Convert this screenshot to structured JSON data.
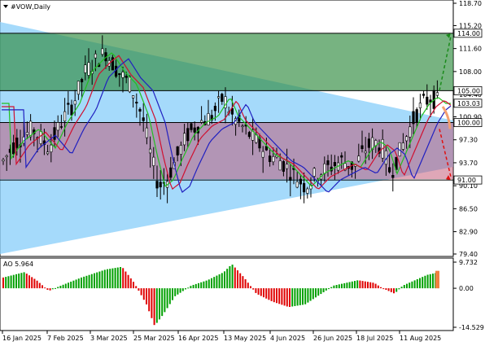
{
  "window": {
    "title": "#VOW,Daily",
    "menu_icon": "triangle-down-icon"
  },
  "price_axis": {
    "ticks": [
      "118.70",
      "115.20",
      "111.60",
      "108.00",
      "104.40",
      "100.90",
      "97.30",
      "93.70",
      "90.10",
      "86.50",
      "82.90",
      "79.40"
    ]
  },
  "levels": [
    {
      "value": 114.0,
      "label": "114.00",
      "color": "#000000"
    },
    {
      "value": 105.0,
      "label": "105.00",
      "color": "#000000"
    },
    {
      "value": 100.0,
      "label": "100.00",
      "color": "#000000"
    },
    {
      "value": 91.0,
      "label": "91.00",
      "color": "#000000"
    }
  ],
  "last_price": {
    "value": 103.03,
    "label": "103.03"
  },
  "zones": {
    "green_color": "#2e8b3e",
    "blue_color": "#87cefa",
    "red_color": "#c05070"
  },
  "ao": {
    "label": "AO 5.964",
    "ticks": [
      "9.732",
      "0.00",
      "-14.529"
    ],
    "up_color": "#00a000",
    "down_color": "#e00000"
  },
  "time_axis": {
    "labels": [
      "16 Jan 2025",
      "7 Feb 2025",
      "3 Mar 2025",
      "25 Mar 2025",
      "16 Apr 2025",
      "13 May 2025",
      "4 Jun 2025",
      "26 Jun 2025",
      "18 Jul 2025",
      "11 Aug 2025"
    ]
  },
  "chart_data": {
    "type": "candlestick",
    "symbol": "#VOW",
    "timeframe": "Daily",
    "price_range": [
      79.4,
      118.7
    ],
    "indicator": {
      "name": "AO",
      "value": 5.964,
      "range": [
        -14.529,
        9.732
      ]
    }
  }
}
